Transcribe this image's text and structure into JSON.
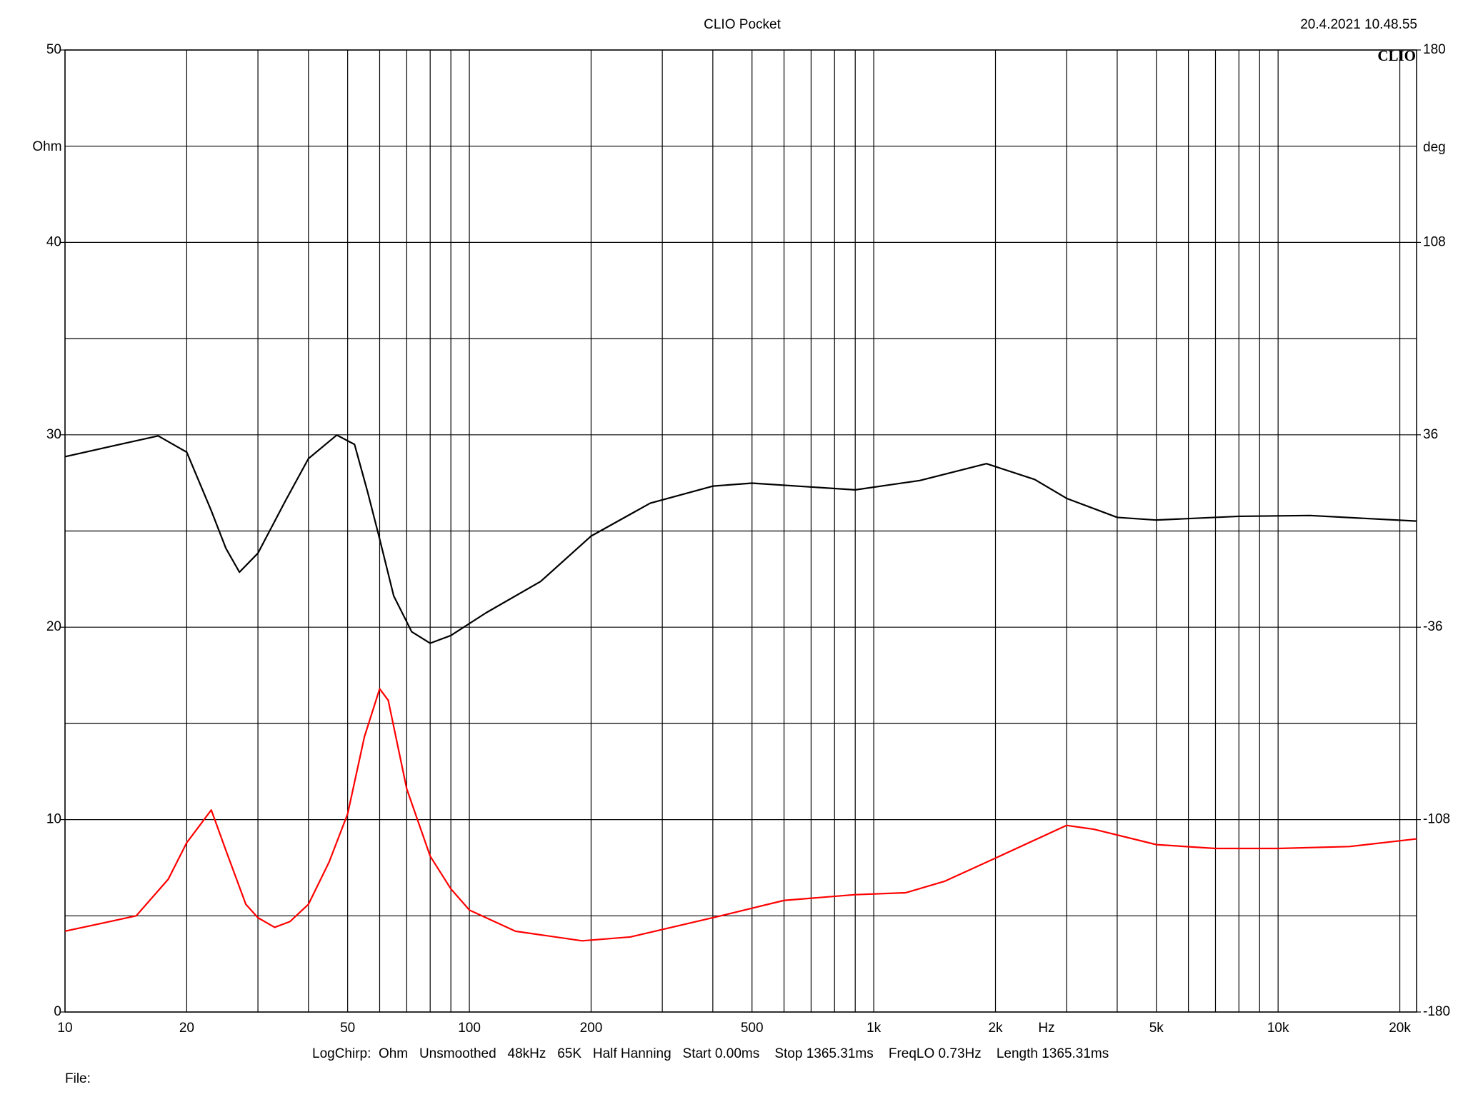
{
  "chart_data": {
    "type": "line",
    "title": "CLIO Pocket",
    "timestamp": "20.4.2021 10.48.55",
    "logo": "CLIO",
    "y_label": "Ohm",
    "y2_label": "deg",
    "x_label": "Hz",
    "footer": "LogChirp:  Ohm   Unsmoothed   48kHz   65K   Half Hanning   Start 0.00ms    Stop 1365.31ms    FreqLO 0.73Hz    Length 1365.31ms",
    "file_label": "File:",
    "x_log": true,
    "grid": true,
    "xlim": [
      10,
      22000
    ],
    "xticks": [
      10,
      20,
      50,
      100,
      200,
      500,
      {
        "value": 1000,
        "label": "1k"
      },
      {
        "value": 2000,
        "label": "2k"
      },
      {
        "value": 5000,
        "label": "5k"
      },
      {
        "value": 10000,
        "label": "10k"
      },
      {
        "value": 20000,
        "label": "20k"
      }
    ],
    "x_minor_grid": [
      30,
      40,
      60,
      70,
      80,
      90,
      300,
      400,
      600,
      700,
      800,
      900,
      3000,
      4000,
      6000,
      7000,
      8000,
      9000
    ],
    "ylim": [
      0,
      50
    ],
    "yticks": [
      0,
      10,
      20,
      30,
      40,
      50
    ],
    "y_minor_grid": [
      5,
      15,
      25,
      35,
      45
    ],
    "y2lim": [
      -180,
      180
    ],
    "y2ticks": [
      -180,
      -108,
      -36,
      36,
      108,
      180
    ],
    "series": [
      {
        "color": "#ff0000",
        "axis": "y",
        "x": [
          10,
          15,
          18,
          20,
          23,
          25,
          28,
          30,
          33,
          36,
          40,
          45,
          50,
          55,
          60,
          63,
          70,
          80,
          90,
          100,
          130,
          190,
          250,
          400,
          600,
          900,
          1200,
          1500,
          2000,
          3000,
          3500,
          5000,
          7000,
          10000,
          15000,
          22000
        ],
        "values": [
          4.2,
          5.0,
          6.9,
          8.8,
          10.5,
          8.4,
          5.6,
          4.9,
          4.4,
          4.7,
          5.6,
          7.8,
          10.3,
          14.3,
          16.8,
          16.2,
          11.6,
          8.1,
          6.4,
          5.3,
          4.2,
          3.7,
          3.9,
          4.9,
          5.8,
          6.1,
          6.2,
          6.8,
          8.0,
          9.7,
          9.5,
          8.7,
          8.5,
          8.5,
          8.6,
          9.0
        ]
      },
      {
        "color": "#000000",
        "axis": "y2",
        "x": [
          10,
          13,
          17,
          20,
          23,
          25,
          27,
          30,
          35,
          40,
          47,
          52,
          56,
          60,
          65,
          72,
          80,
          90,
          110,
          150,
          200,
          280,
          400,
          500,
          900,
          1300,
          1900,
          2500,
          3000,
          4000,
          5000,
          8000,
          12000,
          22000
        ],
        "values": [
          27.8,
          31.7,
          35.6,
          29.5,
          7.6,
          -6.5,
          -15.4,
          -8.3,
          11,
          27.1,
          35.9,
          32.4,
          14.7,
          -3,
          -24.3,
          -37.7,
          -42,
          -39.1,
          -30.6,
          -18.9,
          -1.9,
          10.4,
          16.8,
          17.9,
          15.4,
          18.9,
          25.2,
          19.3,
          12.2,
          5.1,
          4.1,
          5.5,
          5.8,
          3.7
        ]
      }
    ]
  }
}
